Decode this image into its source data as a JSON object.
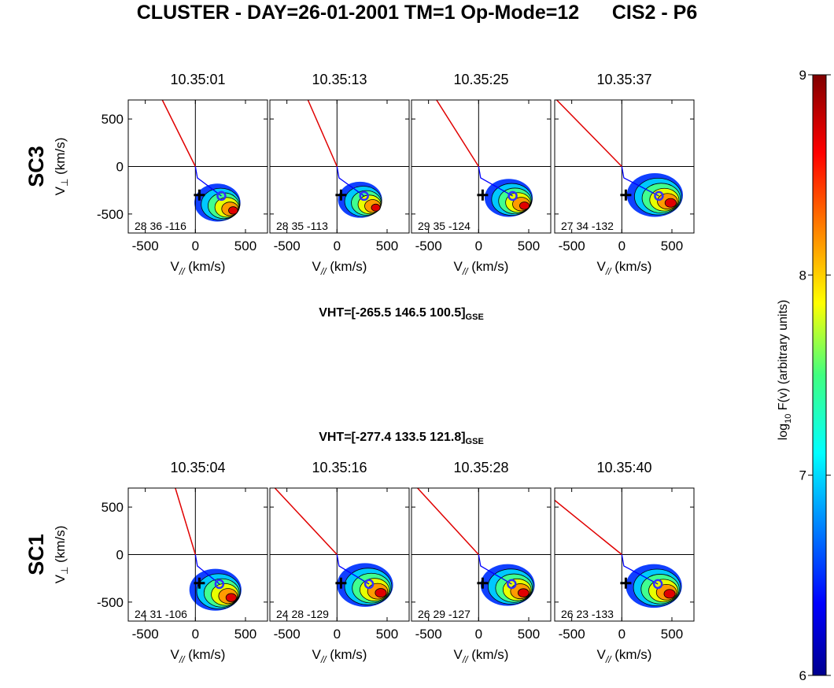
{
  "title": "CLUSTER - DAY=26-01-2001 TM=1 Op-Mode=12      CIS2 - P6",
  "axes": {
    "xlim": [
      -670,
      720
    ],
    "ylim": [
      -700,
      700
    ],
    "xticks": [
      -500,
      0,
      500
    ],
    "yticks": [
      500,
      0,
      -500
    ],
    "xlabel": {
      "main": "V",
      "sub": "//",
      "unit": " (km/s)"
    },
    "ylabel": {
      "main": "V",
      "sub": "⊥",
      "unit": " (km/s)"
    }
  },
  "rows": [
    {
      "label": "SC3",
      "vht": "VHT=[-265.5 146.5 100.5]",
      "vht_sub": "GSE",
      "panels": [
        {
          "time": "10.35:01",
          "note": "28 36 -116"
        },
        {
          "time": "10.35:13",
          "note": "28 35 -113"
        },
        {
          "time": "10.35:25",
          "note": "29 35 -124"
        },
        {
          "time": "10.35:37",
          "note": "27 34 -132"
        }
      ]
    },
    {
      "label": "SC1",
      "vht": "VHT=[-277.4 133.5 121.8]",
      "vht_sub": "GSE",
      "panels": [
        {
          "time": "10.35:04",
          "note": "24 31 -106"
        },
        {
          "time": "10.35:16",
          "note": "24 28 -129"
        },
        {
          "time": "10.35:28",
          "note": "26 29 -127"
        },
        {
          "time": "10.35:40",
          "note": "26 23 -133"
        }
      ]
    }
  ],
  "colorbar": {
    "lim": [
      6,
      9
    ],
    "ticks": [
      6,
      7,
      8,
      9
    ],
    "label": {
      "main": "log",
      "sub": "10",
      "rest": " F(v) (arbitrary units)"
    }
  }
}
